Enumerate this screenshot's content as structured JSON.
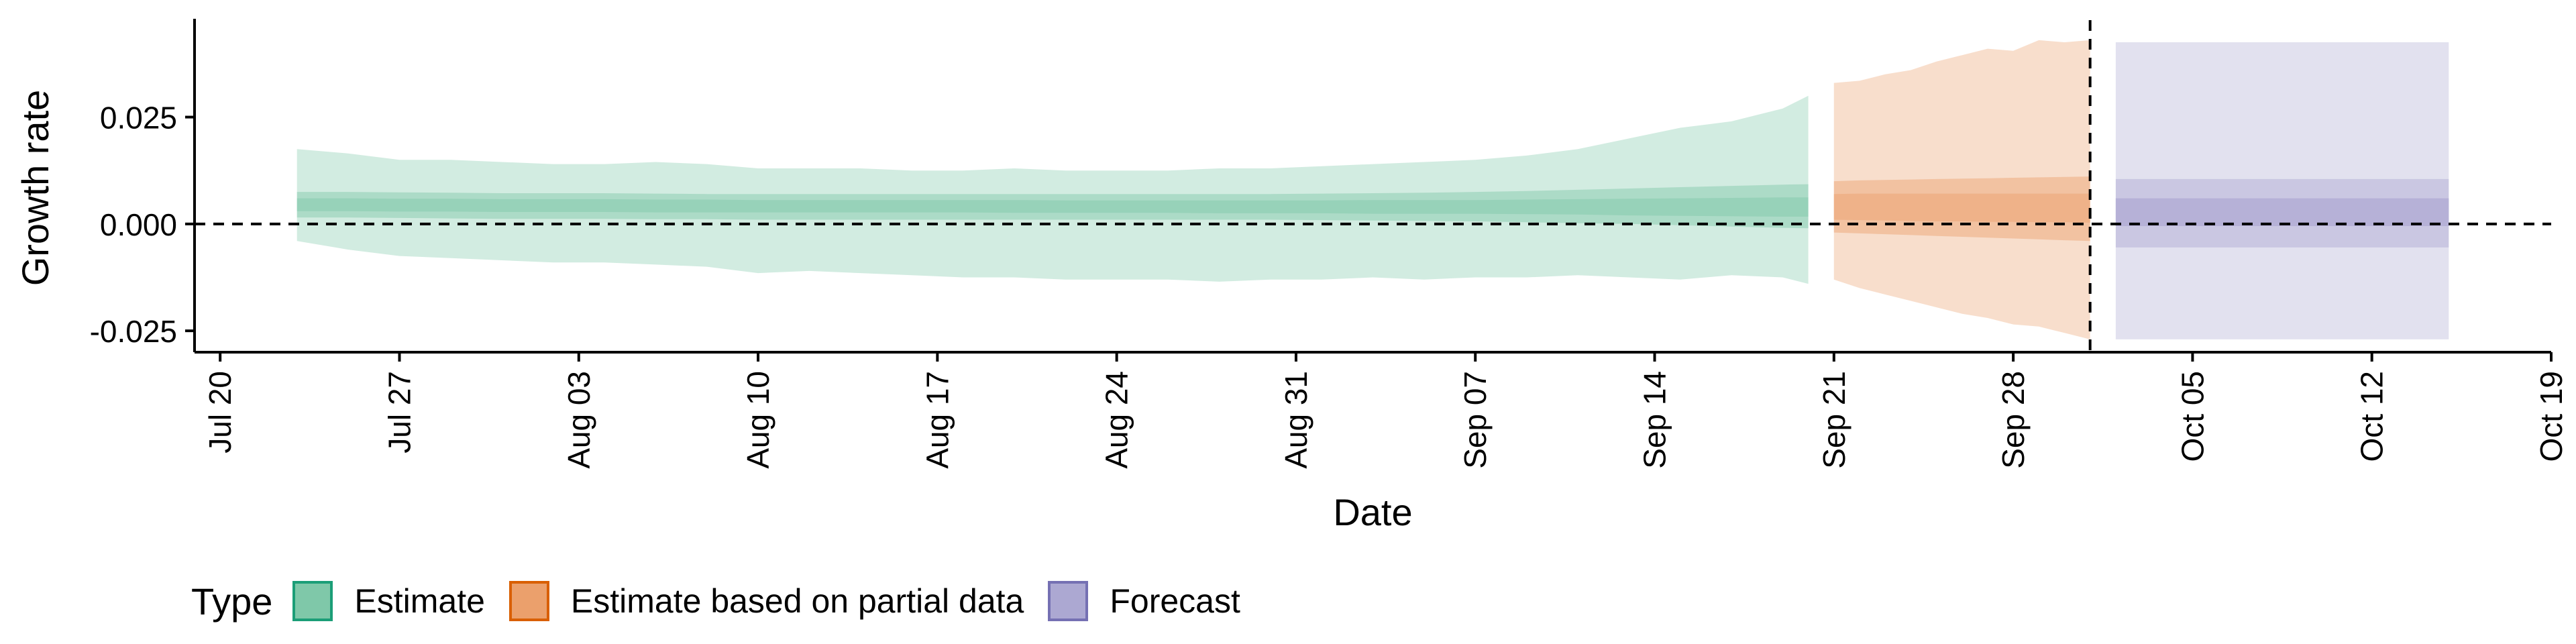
{
  "chart_data": {
    "type": "area",
    "xlabel": "Date",
    "ylabel": "Growth rate",
    "x_ticks": [
      "Jul 20",
      "Jul 27",
      "Aug 03",
      "Aug 10",
      "Aug 17",
      "Aug 24",
      "Aug 31",
      "Sep 07",
      "Sep 14",
      "Sep 21",
      "Sep 28",
      "Oct 05",
      "Oct 12",
      "Oct 19"
    ],
    "y_ticks": [
      "0.025",
      "0.000",
      "-0.025"
    ],
    "y_tick_values": [
      0.025,
      0.0,
      -0.025
    ],
    "xlim": [
      "2020-07-19",
      "2020-10-19"
    ],
    "ylim": [
      -0.03,
      0.048
    ],
    "reference_lines": {
      "horizontal_y": 0.0,
      "vertical_date": "2020-10-01"
    },
    "legend": {
      "title": "Type",
      "position": "bottom-left"
    },
    "series": [
      {
        "name": "Estimate",
        "color": "#1b9e77",
        "fill": "#7fc8a9",
        "x": [
          "2020-07-23",
          "2020-07-25",
          "2020-07-27",
          "2020-07-29",
          "2020-07-31",
          "2020-08-02",
          "2020-08-04",
          "2020-08-06",
          "2020-08-08",
          "2020-08-10",
          "2020-08-12",
          "2020-08-14",
          "2020-08-16",
          "2020-08-18",
          "2020-08-20",
          "2020-08-22",
          "2020-08-24",
          "2020-08-26",
          "2020-08-28",
          "2020-08-30",
          "2020-09-01",
          "2020-09-03",
          "2020-09-05",
          "2020-09-07",
          "2020-09-09",
          "2020-09-11",
          "2020-09-13",
          "2020-09-15",
          "2020-09-17",
          "2020-09-19",
          "2020-09-20"
        ],
        "median": [
          0.0045,
          0.0045,
          0.0044,
          0.0044,
          0.0043,
          0.0043,
          0.0043,
          0.0042,
          0.0042,
          0.0041,
          0.0041,
          0.0041,
          0.0041,
          0.0041,
          0.0041,
          0.004,
          0.004,
          0.004,
          0.004,
          0.004,
          0.004,
          0.004,
          0.004,
          0.0039,
          0.0039,
          0.0039,
          0.0038,
          0.0038,
          0.0038,
          0.0038,
          0.0038
        ],
        "lower_20": [
          0.003,
          0.003,
          0.0029,
          0.0029,
          0.0028,
          0.0028,
          0.0028,
          0.0027,
          0.0027,
          0.0027,
          0.0027,
          0.0027,
          0.0027,
          0.0027,
          0.0026,
          0.0026,
          0.0026,
          0.0026,
          0.0025,
          0.0025,
          0.0025,
          0.0024,
          0.0024,
          0.0024,
          0.0023,
          0.0022,
          0.002,
          0.0019,
          0.0018,
          0.0017,
          0.0017
        ],
        "upper_20": [
          0.006,
          0.006,
          0.0059,
          0.0059,
          0.0058,
          0.0058,
          0.0058,
          0.0057,
          0.0057,
          0.0056,
          0.0056,
          0.0056,
          0.0056,
          0.0056,
          0.0056,
          0.0055,
          0.0055,
          0.0055,
          0.0055,
          0.0055,
          0.0055,
          0.0056,
          0.0056,
          0.0056,
          0.0057,
          0.0058,
          0.0059,
          0.006,
          0.0061,
          0.0062,
          0.0062
        ],
        "lower_50": [
          0.0015,
          0.0015,
          0.0014,
          0.0013,
          0.0012,
          0.0012,
          0.0012,
          0.0011,
          0.0011,
          0.001,
          0.001,
          0.001,
          0.001,
          0.001,
          0.001,
          0.001,
          0.001,
          0.001,
          0.001,
          0.001,
          0.0009,
          0.0008,
          0.0007,
          0.0006,
          0.0004,
          0.0002,
          0.0,
          -0.0003,
          -0.0006,
          -0.0009,
          -0.001
        ],
        "upper_50": [
          0.0075,
          0.0075,
          0.0074,
          0.0073,
          0.0072,
          0.0072,
          0.0072,
          0.0071,
          0.007,
          0.007,
          0.007,
          0.007,
          0.007,
          0.007,
          0.007,
          0.007,
          0.007,
          0.007,
          0.007,
          0.007,
          0.0071,
          0.0072,
          0.0073,
          0.0075,
          0.0077,
          0.008,
          0.0083,
          0.0086,
          0.0089,
          0.0092,
          0.0093
        ],
        "lower_90": [
          -0.004,
          -0.006,
          -0.0075,
          -0.008,
          -0.0085,
          -0.009,
          -0.009,
          -0.0095,
          -0.01,
          -0.0115,
          -0.011,
          -0.0115,
          -0.012,
          -0.0125,
          -0.0125,
          -0.013,
          -0.013,
          -0.013,
          -0.0135,
          -0.013,
          -0.013,
          -0.0125,
          -0.013,
          -0.0125,
          -0.0125,
          -0.012,
          -0.0125,
          -0.013,
          -0.012,
          -0.0125,
          -0.014
        ],
        "upper_90": [
          0.0175,
          0.0165,
          0.015,
          0.015,
          0.0145,
          0.014,
          0.014,
          0.0145,
          0.014,
          0.013,
          0.013,
          0.013,
          0.0125,
          0.0125,
          0.013,
          0.0125,
          0.0125,
          0.0125,
          0.013,
          0.013,
          0.0135,
          0.014,
          0.0145,
          0.015,
          0.016,
          0.0175,
          0.02,
          0.0225,
          0.024,
          0.027,
          0.03
        ]
      },
      {
        "name": "Estimate based on partial data",
        "color": "#d95f02",
        "fill": "#eba06c",
        "x": [
          "2020-09-21",
          "2020-09-22",
          "2020-09-23",
          "2020-09-24",
          "2020-09-25",
          "2020-09-26",
          "2020-09-27",
          "2020-09-28",
          "2020-09-29",
          "2020-09-30",
          "2020-10-01"
        ],
        "median": [
          0.004,
          0.004,
          0.0039,
          0.0038,
          0.0038,
          0.0038,
          0.0038,
          0.0038,
          0.0038,
          0.0038,
          0.0038
        ],
        "lower_20": [
          0.001,
          0.0009,
          0.0008,
          0.0007,
          0.0006,
          0.0006,
          0.0005,
          0.0005,
          0.0004,
          0.0004,
          0.0003
        ],
        "upper_20": [
          0.007,
          0.0071,
          0.0071,
          0.0071,
          0.0071,
          0.0071,
          0.0071,
          0.0071,
          0.0071,
          0.0071,
          0.0071
        ],
        "lower_50": [
          -0.002,
          -0.0022,
          -0.0024,
          -0.0026,
          -0.0028,
          -0.003,
          -0.0032,
          -0.0034,
          -0.0036,
          -0.0038,
          -0.004
        ],
        "upper_50": [
          0.01,
          0.0102,
          0.0103,
          0.0104,
          0.0105,
          0.0106,
          0.0107,
          0.0108,
          0.0109,
          0.011,
          0.0111
        ],
        "lower_90": [
          -0.013,
          -0.015,
          -0.0165,
          -0.018,
          -0.0195,
          -0.021,
          -0.022,
          -0.0235,
          -0.024,
          -0.0255,
          -0.027
        ],
        "upper_90": [
          0.033,
          0.0335,
          0.035,
          0.036,
          0.038,
          0.0395,
          0.041,
          0.0405,
          0.043,
          0.0425,
          0.043
        ]
      },
      {
        "name": "Forecast",
        "color": "#7570b3",
        "fill": "#aca8d2",
        "x": [
          "2020-10-02",
          "2020-10-15"
        ],
        "median": [
          0.0012,
          0.0012
        ],
        "lower_50": [
          -0.0005,
          -0.0005
        ],
        "upper_50": [
          0.006,
          0.006
        ],
        "lower_20": [
          -0.0005,
          -0.0005
        ],
        "upper_20": [
          0.006,
          0.006
        ],
        "lower_outer": [
          -0.0055,
          -0.0055
        ],
        "upper_outer": [
          0.0105,
          0.0105
        ],
        "lower_90": [
          -0.027,
          -0.027
        ],
        "upper_90": [
          0.0425,
          0.0425
        ]
      }
    ]
  }
}
